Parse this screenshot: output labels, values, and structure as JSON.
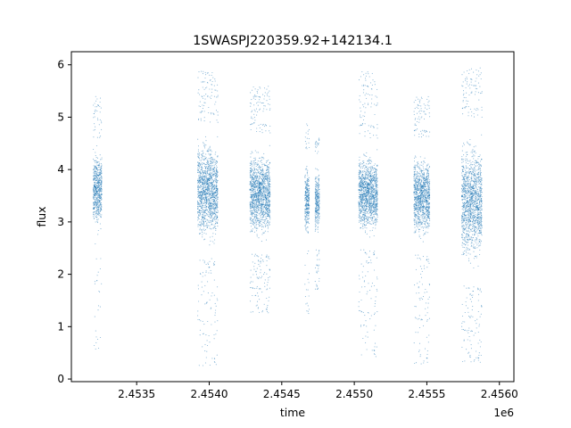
{
  "chart_data": {
    "type": "scatter",
    "title": "1SWASPJ220359.92+142134.1",
    "xlabel": "time",
    "ylabel": "flux",
    "x_offset_label": "1e6",
    "x_scale": 1000000,
    "xlim": [
      2453050,
      2456100
    ],
    "ylim": [
      -0.05,
      6.25
    ],
    "xticks": [
      2453500,
      2454000,
      2454500,
      2455000,
      2455500,
      2456000
    ],
    "xtick_labels": [
      "2.4535",
      "2.4540",
      "2.4545",
      "2.4550",
      "2.4555",
      "2.4560"
    ],
    "yticks": [
      0,
      1,
      2,
      3,
      4,
      5,
      6
    ],
    "ytick_labels": [
      "0",
      "1",
      "2",
      "3",
      "4",
      "5",
      "6"
    ],
    "grid": false,
    "marker_color": "#1f77b4",
    "series": [
      {
        "clusters": [
          {
            "x_range": [
              2453200,
              2453260
            ],
            "core": [
              2.6,
              4.6
            ],
            "full": [
              0.5,
              5.4
            ]
          },
          {
            "x_range": [
              2453920,
              2454060
            ],
            "core": [
              2.3,
              4.9
            ],
            "full": [
              0.25,
              5.9
            ]
          },
          {
            "x_range": [
              2454280,
              2454420
            ],
            "core": [
              2.4,
              4.7
            ],
            "full": [
              1.25,
              5.6
            ]
          },
          {
            "x_range": [
              2454660,
              2454690
            ],
            "core": [
              2.5,
              4.3
            ],
            "full": [
              1.2,
              4.9
            ]
          },
          {
            "x_range": [
              2454730,
              2454760
            ],
            "core": [
              2.5,
              4.3
            ],
            "full": [
              1.7,
              4.6
            ]
          },
          {
            "x_range": [
              2455030,
              2455160
            ],
            "core": [
              2.5,
              4.6
            ],
            "full": [
              0.4,
              5.9
            ]
          },
          {
            "x_range": [
              2455410,
              2455520
            ],
            "core": [
              2.4,
              4.6
            ],
            "full": [
              0.25,
              5.4
            ]
          },
          {
            "x_range": [
              2455740,
              2455880
            ],
            "core": [
              1.8,
              5.0
            ],
            "full": [
              0.3,
              5.95
            ]
          }
        ]
      }
    ]
  }
}
